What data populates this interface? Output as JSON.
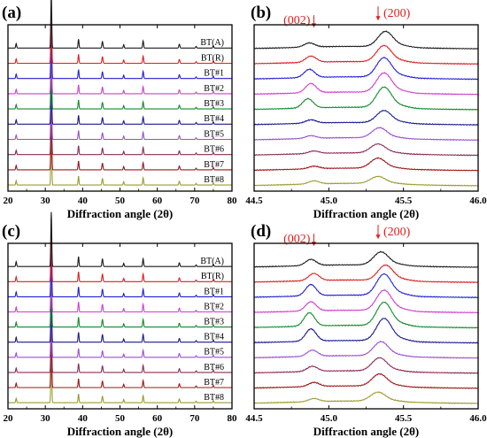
{
  "colors": {
    "BT#8": "#9c9a2e",
    "BT#7": "#a01414",
    "BT#6": "#8b2a55",
    "BT#5": "#9a4fd0",
    "BT#4": "#18188f",
    "BT#3": "#0f8a2a",
    "BT#2": "#d23ad2",
    "BT#1": "#1f1fd6",
    "BT(R)": "#e01c1c",
    "BT(A)": "#1a1a1a",
    "annotation": "#e01c1c"
  },
  "chart_data": [
    {
      "panel": "(a)",
      "type": "line",
      "xlabel": "Diffraction angle (2θ)",
      "xlim": [
        20,
        80
      ],
      "xticks": [
        20,
        30,
        40,
        50,
        60,
        70,
        80
      ],
      "peaks_2theta": [
        22.2,
        31.6,
        38.9,
        45.3,
        51.0,
        56.2,
        65.9,
        70.4,
        75.0
      ],
      "series": [
        {
          "name": "BT#8",
          "peak_intensity": [
            0.08,
            1.0,
            0.16,
            0.12,
            0.06,
            0.13,
            0.07,
            0.03,
            0.04
          ]
        },
        {
          "name": "BT#7",
          "peak_intensity": [
            0.08,
            1.0,
            0.16,
            0.12,
            0.06,
            0.13,
            0.07,
            0.03,
            0.04
          ]
        },
        {
          "name": "BT#6",
          "peak_intensity": [
            0.08,
            1.0,
            0.16,
            0.12,
            0.06,
            0.13,
            0.07,
            0.03,
            0.04
          ]
        },
        {
          "name": "BT#5",
          "peak_intensity": [
            0.08,
            1.0,
            0.16,
            0.12,
            0.06,
            0.13,
            0.07,
            0.03,
            0.04
          ]
        },
        {
          "name": "BT#4",
          "peak_intensity": [
            0.08,
            1.0,
            0.16,
            0.12,
            0.06,
            0.13,
            0.07,
            0.03,
            0.04
          ]
        },
        {
          "name": "BT#3",
          "peak_intensity": [
            0.08,
            1.0,
            0.16,
            0.12,
            0.06,
            0.13,
            0.07,
            0.03,
            0.04
          ]
        },
        {
          "name": "BT#2",
          "peak_intensity": [
            0.08,
            1.0,
            0.16,
            0.12,
            0.06,
            0.13,
            0.07,
            0.03,
            0.04
          ]
        },
        {
          "name": "BT#1",
          "peak_intensity": [
            0.08,
            1.0,
            0.16,
            0.12,
            0.06,
            0.13,
            0.07,
            0.03,
            0.04
          ]
        },
        {
          "name": "BT(R)",
          "peak_intensity": [
            0.08,
            1.0,
            0.16,
            0.12,
            0.06,
            0.13,
            0.07,
            0.03,
            0.04
          ]
        },
        {
          "name": "BT(A)",
          "peak_intensity": [
            0.08,
            1.0,
            0.16,
            0.12,
            0.06,
            0.13,
            0.07,
            0.03,
            0.04
          ]
        }
      ]
    },
    {
      "panel": "(b)",
      "type": "line",
      "xlabel": "Diffraction angle (2θ)",
      "xlim": [
        44.5,
        46.0
      ],
      "xticks": [
        44.5,
        45.0,
        45.5,
        46.0
      ],
      "annotations": [
        {
          "text": "(002)",
          "x": 44.9
        },
        {
          "text": "(200)",
          "x": 45.33
        }
      ],
      "series": [
        {
          "name": "BT#8",
          "p002": 44.9,
          "p200": 45.33,
          "h002": 0.15,
          "h200": 0.35
        },
        {
          "name": "BT#7",
          "p002": 44.9,
          "p200": 45.33,
          "h002": 0.12,
          "h200": 0.5
        },
        {
          "name": "BT#6",
          "p002": 44.9,
          "p200": 45.33,
          "h002": 0.12,
          "h200": 0.45
        },
        {
          "name": "BT#5",
          "p002": 44.88,
          "p200": 45.34,
          "h002": 0.13,
          "h200": 0.5
        },
        {
          "name": "BT#4",
          "p002": 44.88,
          "p200": 45.37,
          "h002": 0.16,
          "h200": 0.6
        },
        {
          "name": "BT#3",
          "p002": 44.86,
          "p200": 45.37,
          "h002": 0.45,
          "h200": 1.0
        },
        {
          "name": "BT#2",
          "p002": 44.88,
          "p200": 45.37,
          "h002": 0.45,
          "h200": 0.95
        },
        {
          "name": "BT#1",
          "p002": 44.87,
          "p200": 45.37,
          "h002": 0.4,
          "h200": 0.95
        },
        {
          "name": "BT(R)",
          "p002": 44.88,
          "p200": 45.37,
          "h002": 0.3,
          "h200": 0.8
        },
        {
          "name": "BT(A)",
          "p002": 44.87,
          "p200": 45.38,
          "h002": 0.2,
          "h200": 0.75
        }
      ]
    },
    {
      "panel": "(c)",
      "type": "line",
      "xlabel": "Diffraction angle (2θ)",
      "xlim": [
        20,
        80
      ],
      "xticks": [
        20,
        30,
        40,
        50,
        60,
        70,
        80
      ],
      "peaks_2theta": [
        22.2,
        31.6,
        38.9,
        45.3,
        51.0,
        56.2,
        65.9,
        70.4,
        75.0
      ],
      "series": [
        {
          "name": "BT#8",
          "peak_intensity": [
            0.08,
            1.0,
            0.16,
            0.12,
            0.06,
            0.13,
            0.07,
            0.03,
            0.04
          ]
        },
        {
          "name": "BT#7",
          "peak_intensity": [
            0.08,
            1.0,
            0.16,
            0.12,
            0.06,
            0.13,
            0.07,
            0.03,
            0.04
          ]
        },
        {
          "name": "BT#6",
          "peak_intensity": [
            0.08,
            1.0,
            0.16,
            0.12,
            0.06,
            0.13,
            0.07,
            0.03,
            0.04
          ]
        },
        {
          "name": "BT#5",
          "peak_intensity": [
            0.08,
            1.0,
            0.16,
            0.12,
            0.06,
            0.13,
            0.07,
            0.03,
            0.04
          ]
        },
        {
          "name": "BT#4",
          "peak_intensity": [
            0.09,
            1.0,
            0.18,
            0.14,
            0.06,
            0.14,
            0.07,
            0.03,
            0.04
          ]
        },
        {
          "name": "BT#3",
          "peak_intensity": [
            0.09,
            1.0,
            0.18,
            0.14,
            0.06,
            0.14,
            0.07,
            0.03,
            0.04
          ]
        },
        {
          "name": "BT#2",
          "peak_intensity": [
            0.09,
            1.0,
            0.18,
            0.14,
            0.06,
            0.14,
            0.07,
            0.03,
            0.04
          ]
        },
        {
          "name": "BT#1",
          "peak_intensity": [
            0.09,
            1.0,
            0.18,
            0.14,
            0.06,
            0.14,
            0.07,
            0.03,
            0.04
          ]
        },
        {
          "name": "BT(R)",
          "peak_intensity": [
            0.09,
            1.0,
            0.18,
            0.14,
            0.06,
            0.14,
            0.07,
            0.03,
            0.04
          ]
        },
        {
          "name": "BT(A)",
          "peak_intensity": [
            0.09,
            1.0,
            0.18,
            0.14,
            0.06,
            0.14,
            0.07,
            0.03,
            0.04
          ]
        }
      ]
    },
    {
      "panel": "(d)",
      "type": "line",
      "xlabel": "Diffraction angle (2θ)",
      "xlim": [
        44.5,
        46.0
      ],
      "xticks": [
        44.5,
        45.0,
        45.5,
        46.0
      ],
      "annotations": [
        {
          "text": "(002)",
          "x": 44.9
        },
        {
          "text": "(200)",
          "x": 45.33
        }
      ],
      "series": [
        {
          "name": "BT#8",
          "p002": 44.9,
          "p200": 45.33,
          "h002": 0.15,
          "h200": 0.45
        },
        {
          "name": "BT#7",
          "p002": 44.9,
          "p200": 45.34,
          "h002": 0.2,
          "h200": 0.6
        },
        {
          "name": "BT#6",
          "p002": 44.89,
          "p200": 45.34,
          "h002": 0.25,
          "h200": 0.65
        },
        {
          "name": "BT#5",
          "p002": 44.89,
          "p200": 45.35,
          "h002": 0.3,
          "h200": 0.7
        },
        {
          "name": "BT#4",
          "p002": 44.88,
          "p200": 45.37,
          "h002": 0.6,
          "h200": 1.1
        },
        {
          "name": "BT#3",
          "p002": 44.87,
          "p200": 45.37,
          "h002": 0.65,
          "h200": 1.15
        },
        {
          "name": "BT#2",
          "p002": 44.88,
          "p200": 45.37,
          "h002": 0.45,
          "h200": 1.0
        },
        {
          "name": "BT#1",
          "p002": 44.88,
          "p200": 45.37,
          "h002": 0.55,
          "h200": 1.05
        },
        {
          "name": "BT(R)",
          "p002": 44.9,
          "p200": 45.38,
          "h002": 0.35,
          "h200": 0.75
        },
        {
          "name": "BT(A)",
          "p002": 44.88,
          "p200": 45.35,
          "h002": 0.3,
          "h200": 0.65
        }
      ]
    }
  ]
}
